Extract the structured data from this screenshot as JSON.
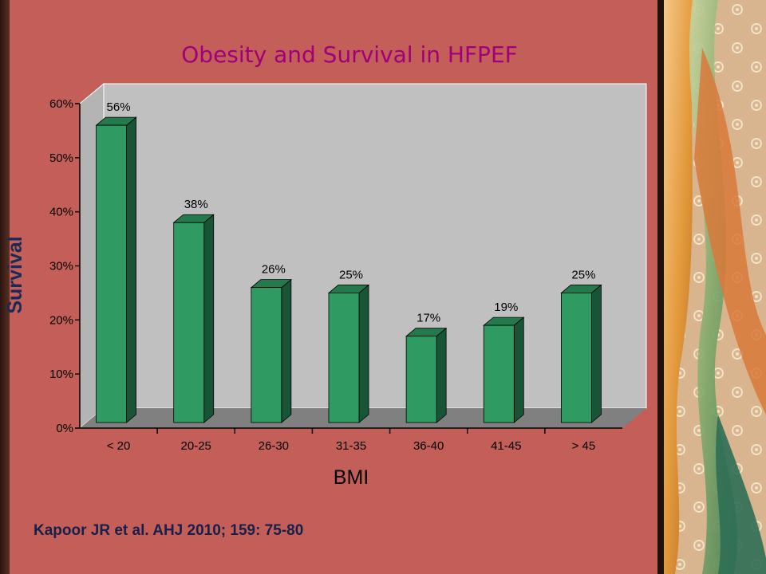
{
  "slide": {
    "title": "Obesity and Survival in HFPEF",
    "citation": "Kapoor JR et al. AHJ 2010; 159: 75-80"
  },
  "colors": {
    "background": "#c45e58",
    "title": "#a0007a",
    "bar_front": "#2f9b63",
    "bar_top": "#247a4d",
    "bar_side": "#1a5437",
    "wall": "#c0c0c0",
    "floor": "#808080"
  },
  "decor": {
    "right_panel": "floral-ribbon-decoration"
  },
  "chart_data": {
    "type": "bar",
    "title": "Obesity and Survival in HFPEF",
    "xlabel": "BMI",
    "ylabel": "Survival",
    "categories": [
      "< 20",
      "20-25",
      "26-30",
      "31-35",
      "36-40",
      "41-45",
      "> 45"
    ],
    "values": [
      56,
      38,
      26,
      25,
      17,
      19,
      25
    ],
    "data_labels": [
      "56%",
      "38%",
      "26%",
      "25%",
      "17%",
      "19%",
      "25%"
    ],
    "y_ticks": [
      "0%",
      "10%",
      "20%",
      "30%",
      "40%",
      "50%",
      "60%"
    ],
    "ylim": [
      0,
      60
    ],
    "grid": false,
    "legend": "none",
    "style": "3d"
  }
}
